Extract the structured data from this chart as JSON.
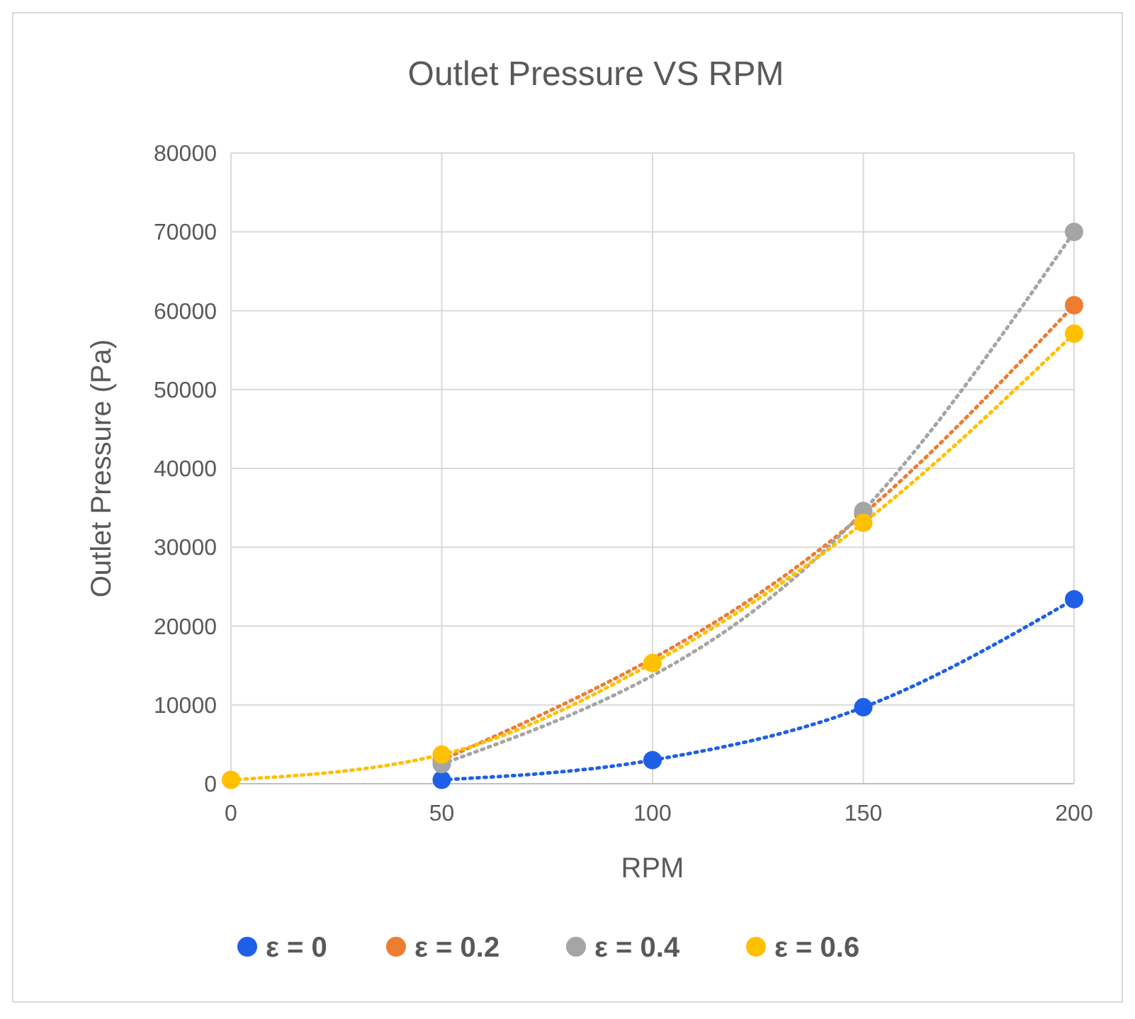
{
  "chart_data": {
    "type": "line",
    "title": "Outlet Pressure VS RPM",
    "xlabel": "RPM",
    "ylabel": "Outlet Pressure (Pa)",
    "x": [
      0,
      50,
      100,
      150,
      200
    ],
    "xlim": [
      0,
      200
    ],
    "xticks": [
      0,
      50,
      100,
      150,
      200
    ],
    "ylim": [
      0,
      80000
    ],
    "yticks": [
      0,
      10000,
      20000,
      30000,
      40000,
      50000,
      60000,
      70000,
      80000
    ],
    "grid": true,
    "legend": "bottom",
    "marker": "circle",
    "line_style": "dotted",
    "series": [
      {
        "name": "ε = 0",
        "color": "#1f5fe8",
        "values": [
          null,
          500,
          3000,
          9700,
          23400
        ]
      },
      {
        "name": "ε = 0.2",
        "color": "#ed7d31",
        "values": [
          null,
          3000,
          null,
          34200,
          60700
        ]
      },
      {
        "name": "ε = 0.4",
        "color": "#a5a5a5",
        "values": [
          null,
          2500,
          null,
          34600,
          70000
        ]
      },
      {
        "name": "ε = 0.6",
        "color": "#ffc000",
        "values": [
          500,
          3700,
          15300,
          33100,
          57100
        ]
      }
    ]
  }
}
